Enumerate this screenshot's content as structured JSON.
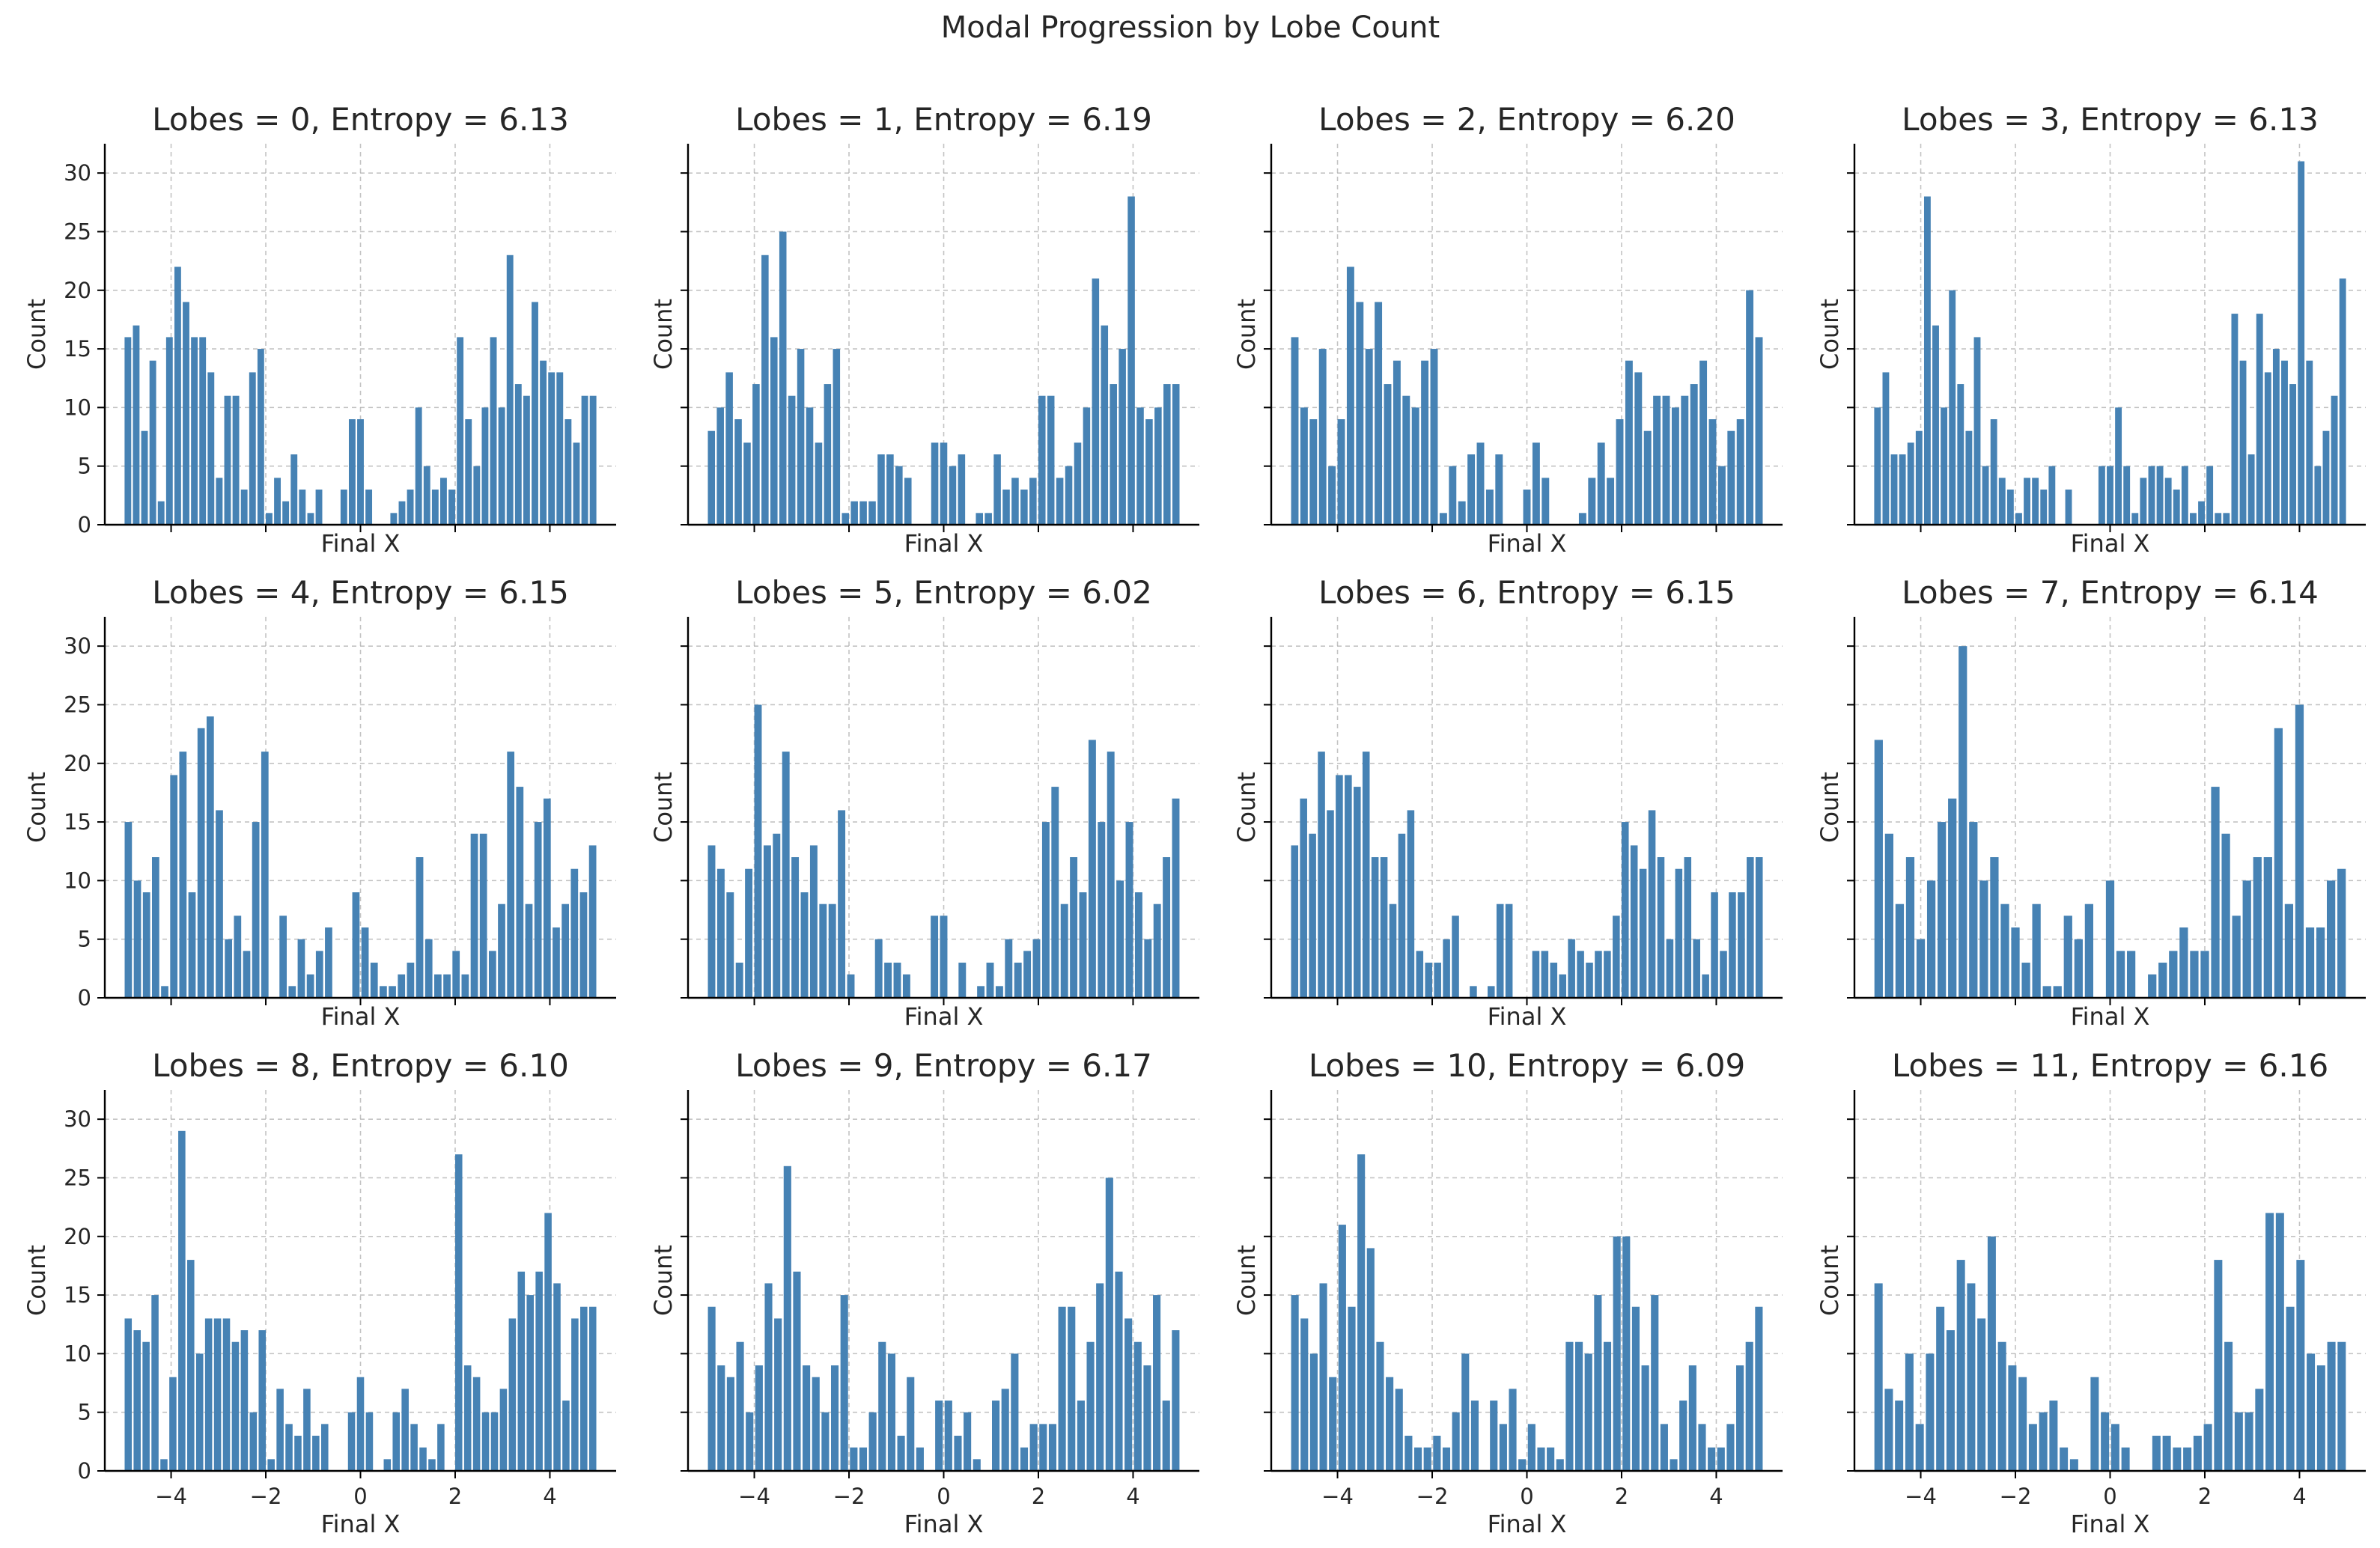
{
  "figure": {
    "title": "Modal Progression by Lobe Count"
  },
  "style": {
    "bar_color": "#4682b4",
    "grid_color": "#b0b0b0",
    "axis_color": "#000000"
  },
  "chart_data": [
    {
      "type": "bar",
      "title": "Lobes = 0, Entropy = 6.13",
      "xlabel": "Final X",
      "ylabel": "Count",
      "xlim": [
        -5.4,
        5.4
      ],
      "ylim": [
        0,
        32.5
      ],
      "xticks": [
        -4,
        -2,
        0,
        2,
        4
      ],
      "yticks": [
        0,
        5,
        10,
        15,
        20,
        25,
        30
      ],
      "grid": true,
      "values": [
        16,
        17,
        8,
        14,
        2,
        16,
        22,
        19,
        16,
        16,
        13,
        4,
        11,
        11,
        3,
        13,
        15,
        1,
        4,
        2,
        6,
        3,
        1,
        3,
        0,
        0,
        3,
        9,
        9,
        3,
        0,
        0,
        1,
        2,
        3,
        10,
        5,
        3,
        4,
        3,
        16,
        9,
        5,
        10,
        16,
        10,
        23,
        12,
        11,
        19,
        14,
        13,
        13,
        9,
        7,
        11,
        11
      ]
    },
    {
      "type": "bar",
      "title": "Lobes = 1, Entropy = 6.19",
      "xlabel": "Final X",
      "ylabel": "Count",
      "xlim": [
        -5.4,
        5.4
      ],
      "ylim": [
        0,
        32.5
      ],
      "xticks": [
        -4,
        -2,
        0,
        2,
        4
      ],
      "yticks": [
        0,
        5,
        10,
        15,
        20,
        25,
        30
      ],
      "grid": true,
      "values": [
        8,
        10,
        13,
        9,
        7,
        12,
        23,
        16,
        25,
        11,
        15,
        10,
        7,
        12,
        15,
        1,
        2,
        2,
        2,
        6,
        6,
        5,
        4,
        0,
        0,
        7,
        7,
        5,
        6,
        0,
        1,
        1,
        6,
        3,
        4,
        3,
        4,
        11,
        11,
        4,
        5,
        7,
        10,
        21,
        17,
        12,
        15,
        28,
        10,
        9,
        10,
        12,
        12
      ]
    },
    {
      "type": "bar",
      "title": "Lobes = 2, Entropy = 6.20",
      "xlabel": "Final X",
      "ylabel": "Count",
      "xlim": [
        -5.4,
        5.4
      ],
      "ylim": [
        0,
        32.5
      ],
      "xticks": [
        -4,
        -2,
        0,
        2,
        4
      ],
      "yticks": [
        0,
        5,
        10,
        15,
        20,
        25,
        30
      ],
      "grid": true,
      "values": [
        16,
        10,
        9,
        15,
        5,
        9,
        22,
        19,
        15,
        19,
        12,
        14,
        11,
        10,
        14,
        15,
        1,
        5,
        2,
        6,
        7,
        3,
        6,
        0,
        0,
        3,
        7,
        4,
        0,
        0,
        0,
        1,
        4,
        7,
        4,
        9,
        14,
        13,
        8,
        11,
        11,
        10,
        11,
        12,
        14,
        9,
        5,
        8,
        9,
        20,
        16
      ]
    },
    {
      "type": "bar",
      "title": "Lobes = 3, Entropy = 6.13",
      "xlabel": "Final X",
      "ylabel": "Count",
      "xlim": [
        -5.4,
        5.4
      ],
      "ylim": [
        0,
        32.5
      ],
      "xticks": [
        -4,
        -2,
        0,
        2,
        4
      ],
      "yticks": [
        0,
        5,
        10,
        15,
        20,
        25,
        30
      ],
      "grid": true,
      "values": [
        10,
        13,
        6,
        6,
        7,
        8,
        28,
        17,
        10,
        20,
        12,
        8,
        16,
        5,
        9,
        4,
        3,
        1,
        4,
        4,
        3,
        5,
        0,
        3,
        0,
        0,
        0,
        5,
        5,
        10,
        5,
        1,
        4,
        5,
        5,
        4,
        3,
        5,
        1,
        2,
        5,
        1,
        1,
        18,
        14,
        6,
        18,
        13,
        15,
        14,
        12,
        31,
        14,
        5,
        8,
        11,
        21
      ]
    },
    {
      "type": "bar",
      "title": "Lobes = 4, Entropy = 6.15",
      "xlabel": "Final X",
      "ylabel": "Count",
      "xlim": [
        -5.4,
        5.4
      ],
      "ylim": [
        0,
        32.5
      ],
      "xticks": [
        -4,
        -2,
        0,
        2,
        4
      ],
      "yticks": [
        0,
        5,
        10,
        15,
        20,
        25,
        30
      ],
      "grid": true,
      "values": [
        15,
        10,
        9,
        12,
        1,
        19,
        21,
        9,
        23,
        24,
        16,
        5,
        7,
        4,
        15,
        21,
        0,
        7,
        1,
        5,
        2,
        4,
        6,
        0,
        0,
        9,
        6,
        3,
        1,
        1,
        2,
        3,
        12,
        5,
        2,
        2,
        4,
        2,
        14,
        14,
        4,
        8,
        21,
        18,
        8,
        15,
        17,
        6,
        8,
        11,
        9,
        13
      ]
    },
    {
      "type": "bar",
      "title": "Lobes = 5, Entropy = 6.02",
      "xlabel": "Final X",
      "ylabel": "Count",
      "xlim": [
        -5.4,
        5.4
      ],
      "ylim": [
        0,
        32.5
      ],
      "xticks": [
        -4,
        -2,
        0,
        2,
        4
      ],
      "yticks": [
        0,
        5,
        10,
        15,
        20,
        25,
        30
      ],
      "grid": true,
      "values": [
        13,
        11,
        9,
        3,
        11,
        25,
        13,
        14,
        21,
        12,
        9,
        13,
        8,
        8,
        16,
        2,
        0,
        0,
        5,
        3,
        3,
        2,
        0,
        0,
        7,
        7,
        0,
        3,
        0,
        1,
        3,
        1,
        5,
        3,
        4,
        5,
        15,
        18,
        8,
        12,
        9,
        22,
        15,
        21,
        10,
        15,
        9,
        5,
        8,
        12,
        17
      ]
    },
    {
      "type": "bar",
      "title": "Lobes = 6, Entropy = 6.15",
      "xlabel": "Final X",
      "ylabel": "Count",
      "xlim": [
        -5.4,
        5.4
      ],
      "ylim": [
        0,
        32.5
      ],
      "xticks": [
        -4,
        -2,
        0,
        2,
        4
      ],
      "yticks": [
        0,
        5,
        10,
        15,
        20,
        25,
        30
      ],
      "grid": true,
      "values": [
        13,
        17,
        14,
        21,
        16,
        19,
        19,
        18,
        21,
        12,
        12,
        8,
        14,
        16,
        4,
        3,
        3,
        5,
        7,
        0,
        1,
        0,
        1,
        8,
        8,
        0,
        0,
        4,
        4,
        3,
        2,
        5,
        4,
        3,
        4,
        4,
        7,
        15,
        13,
        11,
        16,
        12,
        5,
        11,
        12,
        5,
        2,
        9,
        4,
        9,
        9,
        12,
        12
      ]
    },
    {
      "type": "bar",
      "title": "Lobes = 7, Entropy = 6.14",
      "xlabel": "Final X",
      "ylabel": "Count",
      "xlim": [
        -5.4,
        5.4
      ],
      "ylim": [
        0,
        32.5
      ],
      "xticks": [
        -4,
        -2,
        0,
        2,
        4
      ],
      "yticks": [
        0,
        5,
        10,
        15,
        20,
        25,
        30
      ],
      "grid": true,
      "values": [
        22,
        14,
        8,
        12,
        5,
        10,
        15,
        17,
        30,
        15,
        10,
        12,
        8,
        6,
        3,
        8,
        1,
        1,
        7,
        5,
        8,
        0,
        10,
        4,
        4,
        0,
        2,
        3,
        4,
        6,
        4,
        4,
        18,
        14,
        7,
        10,
        12,
        12,
        23,
        8,
        25,
        6,
        6,
        10,
        11
      ]
    },
    {
      "type": "bar",
      "title": "Lobes = 8, Entropy = 6.10",
      "xlabel": "Final X",
      "ylabel": "Count",
      "xlim": [
        -5.4,
        5.4
      ],
      "ylim": [
        0,
        32.5
      ],
      "xticks": [
        -4,
        -2,
        0,
        2,
        4
      ],
      "yticks": [
        0,
        5,
        10,
        15,
        20,
        25,
        30
      ],
      "grid": true,
      "values": [
        13,
        12,
        11,
        15,
        1,
        8,
        29,
        18,
        10,
        13,
        13,
        13,
        11,
        12,
        5,
        12,
        1,
        7,
        4,
        3,
        7,
        3,
        4,
        0,
        0,
        5,
        8,
        5,
        0,
        1,
        5,
        7,
        4,
        2,
        1,
        4,
        0,
        27,
        9,
        8,
        5,
        5,
        7,
        13,
        17,
        15,
        17,
        22,
        16,
        6,
        13,
        14,
        14
      ]
    },
    {
      "type": "bar",
      "title": "Lobes = 9, Entropy = 6.17",
      "xlabel": "Final X",
      "ylabel": "Count",
      "xlim": [
        -5.4,
        5.4
      ],
      "ylim": [
        0,
        32.5
      ],
      "xticks": [
        -4,
        -2,
        0,
        2,
        4
      ],
      "yticks": [
        0,
        5,
        10,
        15,
        20,
        25,
        30
      ],
      "grid": true,
      "values": [
        14,
        9,
        8,
        11,
        5,
        9,
        16,
        13,
        26,
        17,
        9,
        8,
        5,
        9,
        15,
        2,
        2,
        5,
        11,
        10,
        3,
        8,
        2,
        0,
        6,
        6,
        3,
        5,
        1,
        0,
        6,
        7,
        10,
        2,
        4,
        4,
        4,
        14,
        14,
        6,
        11,
        16,
        25,
        17,
        13,
        11,
        9,
        15,
        6,
        12
      ]
    },
    {
      "type": "bar",
      "title": "Lobes = 10, Entropy = 6.09",
      "xlabel": "Final X",
      "ylabel": "Count",
      "xlim": [
        -5.4,
        5.4
      ],
      "ylim": [
        0,
        32.5
      ],
      "xticks": [
        -4,
        -2,
        0,
        2,
        4
      ],
      "yticks": [
        0,
        5,
        10,
        15,
        20,
        25,
        30
      ],
      "grid": true,
      "values": [
        15,
        13,
        10,
        16,
        8,
        21,
        14,
        27,
        19,
        11,
        8,
        7,
        3,
        2,
        2,
        3,
        2,
        5,
        10,
        6,
        0,
        6,
        4,
        7,
        1,
        4,
        2,
        2,
        1,
        11,
        11,
        10,
        15,
        11,
        20,
        20,
        14,
        9,
        15,
        4,
        1,
        6,
        9,
        4,
        2,
        2,
        4,
        9,
        11,
        14
      ]
    },
    {
      "type": "bar",
      "title": "Lobes = 11, Entropy = 6.16",
      "xlabel": "Final X",
      "ylabel": "Count",
      "xlim": [
        -5.4,
        5.4
      ],
      "ylim": [
        0,
        32.5
      ],
      "xticks": [
        -4,
        -2,
        0,
        2,
        4
      ],
      "yticks": [
        0,
        5,
        10,
        15,
        20,
        25,
        30
      ],
      "grid": true,
      "values": [
        16,
        7,
        6,
        10,
        4,
        10,
        14,
        12,
        18,
        16,
        13,
        20,
        11,
        9,
        8,
        4,
        5,
        6,
        2,
        1,
        0,
        8,
        5,
        4,
        2,
        0,
        0,
        3,
        3,
        2,
        2,
        3,
        4,
        18,
        11,
        5,
        5,
        7,
        22,
        22,
        14,
        18,
        10,
        9,
        11,
        11
      ]
    }
  ]
}
